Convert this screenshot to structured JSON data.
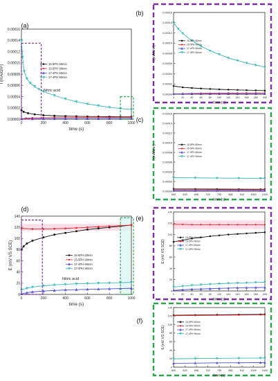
{
  "colors": {
    "black": "#111111",
    "red": "#e3242b",
    "blue": "#4b4bd6",
    "cyan": "#3ab7b7",
    "purple": "#7b2fa0",
    "green": "#2da44e",
    "pink": "#f7c6d8",
    "cyan_fill": "#d7f5f2"
  },
  "chart_data": [
    {
      "panel": "(a)",
      "type": "line",
      "xlabel": "time (s)",
      "ylabel": "I (mA/cm²)",
      "xlim": [
        0,
        1000
      ],
      "ylim": [
        0,
        0.00016
      ],
      "xticks": [
        0,
        200,
        400,
        600,
        800,
        1000
      ],
      "yticks": [
        "0.00000",
        "0.00002",
        "0.00004",
        "0.00006",
        "0.00008",
        "0.00010",
        "0.00012",
        "0.00014",
        "0.00016"
      ],
      "annotation": "Nitric acid",
      "legend": [
        "15-5PH 60min",
        "15-5PH 90min",
        "17-4PH 60min",
        "17-4PH 90min"
      ],
      "series": [
        {
          "name": "15-5PH 60min",
          "color": "black",
          "marker": "square",
          "x": [
            0,
            20,
            60,
            120,
            200,
            300,
            400,
            500,
            600,
            700,
            800,
            900,
            1000
          ],
          "y": [
            1.6e-05,
            1.3e-05,
            1.05e-05,
            8.5e-06,
            7e-06,
            6e-06,
            5.4e-06,
            5e-06,
            4.7e-06,
            4.5e-06,
            4.3e-06,
            4.1e-06,
            4e-06
          ]
        },
        {
          "name": "15-5PH 90min",
          "color": "red",
          "marker": "circle",
          "x": [
            0,
            40,
            100,
            200,
            300,
            400,
            500,
            600,
            700,
            800,
            900,
            1000
          ],
          "y": [
            5e-07,
            1.5e-06,
            2.2e-06,
            2.6e-06,
            2.8e-06,
            2.9e-06,
            3e-06,
            3e-06,
            3e-06,
            3e-06,
            3e-06,
            3e-06
          ]
        },
        {
          "name": "17-4PH 60min",
          "color": "blue",
          "marker": "triangle",
          "x": [
            0,
            100,
            200,
            300,
            400,
            500,
            600,
            700,
            800,
            900,
            1000
          ],
          "y": [
            4e-07,
            6e-07,
            7e-07,
            8e-07,
            8e-07,
            9e-07,
            9e-07,
            9e-07,
            1e-06,
            1e-06,
            1e-06
          ]
        },
        {
          "name": "17-4PH 90min",
          "color": "cyan",
          "marker": "triangle-down",
          "x": [
            0,
            10,
            25,
            50,
            80,
            120,
            160,
            200,
            300,
            400,
            500,
            600,
            700,
            800,
            900,
            1000
          ],
          "y": [
            0.00014,
            0.00011,
            8.5e-05,
            7.2e-05,
            6.4e-05,
            5.8e-05,
            5.3e-05,
            4.9e-05,
            4.2e-05,
            3.6e-05,
            3.1e-05,
            2.7e-05,
            2.4e-05,
            2.1e-05,
            1.9e-05,
            1.7e-05
          ]
        }
      ]
    },
    {
      "panel": "(b)",
      "type": "line",
      "xlabel": "time (s)",
      "ylabel": "I (mA/cm²)",
      "xlim": [
        0,
        200
      ],
      "ylim": [
        0,
        0.00016
      ],
      "xticks": [
        0,
        20,
        40,
        60,
        80,
        100,
        120,
        140,
        160,
        180,
        200
      ],
      "yticks": [
        "0.00000",
        "0.00002",
        "0.00004",
        "0.00006",
        "0.00008",
        "0.00010",
        "0.00012",
        "0.00014",
        "0.00016"
      ],
      "legend": [
        "15-5PH 60min",
        "15-5PH 90min",
        "17-4PH 60min",
        "17-4PH 90min"
      ],
      "series": [
        {
          "name": "15-5PH 60min",
          "color": "black",
          "marker": "square",
          "x": [
            0,
            20,
            40,
            60,
            80,
            100,
            120,
            140,
            160,
            180,
            200
          ],
          "y": [
            1.6e-05,
            1.35e-05,
            1.22e-05,
            1.12e-05,
            1.03e-05,
            9.5e-06,
            8.9e-06,
            8.4e-06,
            7.9e-06,
            7.5e-06,
            7e-06
          ]
        },
        {
          "name": "15-5PH 90min",
          "color": "red",
          "marker": "circle",
          "x": [
            0,
            20,
            40,
            60,
            80,
            100,
            120,
            140,
            160,
            180,
            200
          ],
          "y": [
            5e-07,
            1e-06,
            1.4e-06,
            1.7e-06,
            1.9e-06,
            2.1e-06,
            2.2e-06,
            2.3e-06,
            2.4e-06,
            2.5e-06,
            2.6e-06
          ]
        },
        {
          "name": "17-4PH 60min",
          "color": "blue",
          "marker": "triangle",
          "x": [
            0,
            20,
            40,
            60,
            80,
            100,
            120,
            140,
            160,
            180,
            200
          ],
          "y": [
            4e-07,
            5e-07,
            5e-07,
            6e-07,
            6e-07,
            6e-07,
            7e-07,
            7e-07,
            7e-07,
            7e-07,
            7e-07
          ]
        },
        {
          "name": "17-4PH 90min",
          "color": "cyan",
          "marker": "triangle-down",
          "x": [
            0,
            10,
            20,
            40,
            60,
            80,
            100,
            120,
            140,
            160,
            180,
            200
          ],
          "y": [
            0.00014,
            0.000128,
            0.000119,
            0.000105,
            9.4e-05,
            8.5e-05,
            7.8e-05,
            7.1e-05,
            6.6e-05,
            6.1e-05,
            5.7e-05,
            5.3e-05
          ]
        }
      ]
    },
    {
      "panel": "(c)",
      "type": "line",
      "xlabel": "time (s)",
      "ylabel": "I (mA/cm²)",
      "xlim": [
        600,
        1020
      ],
      "ylim": [
        0,
        0.00016
      ],
      "xticks": [
        600,
        633,
        696,
        743,
        795,
        860,
        912,
        1000,
        1020
      ],
      "yticks": [
        "0.00000",
        "0.00002",
        "0.00004",
        "0.00006",
        "0.00008",
        "0.00010",
        "0.00012",
        "0.00014",
        "0.00016"
      ],
      "legend": [
        "15-5PH 60min",
        "15-5PH 90min",
        "17-4PH 60min",
        "17-4PH 90min"
      ],
      "series": [
        {
          "name": "15-5PH 60min",
          "color": "black",
          "marker": "square",
          "x": [
            600,
            700,
            800,
            900,
            1000,
            1020
          ],
          "y": [
            4.6e-06,
            4.5e-06,
            4.3e-06,
            4.2e-06,
            4e-06,
            4e-06
          ]
        },
        {
          "name": "15-5PH 90min",
          "color": "red",
          "marker": "circle",
          "x": [
            600,
            700,
            800,
            900,
            1000,
            1020
          ],
          "y": [
            3e-06,
            3e-06,
            3e-06,
            3e-06,
            3e-06,
            3e-06
          ]
        },
        {
          "name": "17-4PH 60min",
          "color": "blue",
          "marker": "triangle",
          "x": [
            600,
            700,
            800,
            900,
            1000,
            1020
          ],
          "y": [
            1e-06,
            1e-06,
            1e-06,
            1e-06,
            1e-06,
            1e-06
          ]
        },
        {
          "name": "17-4PH 90min",
          "color": "cyan",
          "marker": "triangle-down",
          "x": [
            600,
            700,
            800,
            900,
            1000,
            1020
          ],
          "y": [
            2.8e-05,
            2.75e-05,
            2.7e-05,
            2.68e-05,
            2.65e-05,
            2.65e-05
          ]
        }
      ]
    },
    {
      "panel": "(d)",
      "type": "line",
      "xlabel": "time (s)",
      "ylabel": "E (mV VS SCE)",
      "xlim": [
        0,
        1000
      ],
      "ylim": [
        0,
        140
      ],
      "xticks": [
        0,
        200,
        400,
        600,
        800,
        1000
      ],
      "yticks": [
        "0",
        "20",
        "40",
        "60",
        "80",
        "100",
        "120",
        "140"
      ],
      "annotation": "Nitric acid",
      "legend": [
        "15-5PH 60min",
        "15-5PH 90min",
        "17-4PH 60min",
        "17-4PH 90min"
      ],
      "series": [
        {
          "name": "15-5PH 60min",
          "color": "black",
          "marker": "square",
          "x": [
            0,
            20,
            50,
            100,
            200,
            300,
            400,
            500,
            600,
            700,
            800,
            900,
            1000
          ],
          "y": [
            80,
            86,
            91,
            96,
            102,
            107,
            110,
            113,
            116,
            118,
            120,
            122,
            124
          ]
        },
        {
          "name": "15-5PH 90min",
          "color": "red",
          "marker": "circle",
          "x": [
            0,
            100,
            200,
            300,
            400,
            500,
            600,
            700,
            800,
            900,
            1000
          ],
          "y": [
            118,
            117,
            117,
            117.5,
            118,
            119,
            120,
            121,
            122,
            123,
            124
          ]
        },
        {
          "name": "17-4PH 60min",
          "color": "blue",
          "marker": "triangle",
          "x": [
            0,
            50,
            100,
            200,
            300,
            400,
            500,
            600,
            700,
            800,
            900,
            1000
          ],
          "y": [
            1,
            3,
            4.5,
            6,
            7,
            8,
            8.5,
            9,
            9.5,
            10,
            10.5,
            11
          ]
        },
        {
          "name": "17-4PH 90min",
          "color": "cyan",
          "marker": "triangle-down",
          "x": [
            0,
            50,
            100,
            200,
            300,
            400,
            500,
            600,
            700,
            800,
            900,
            1000
          ],
          "y": [
            8,
            11,
            13,
            15.5,
            17,
            18,
            19,
            19.5,
            20,
            20.5,
            21,
            21.5
          ]
        }
      ]
    },
    {
      "panel": "(e)",
      "type": "line",
      "xlabel": "time (s)",
      "ylabel": "E (mV VS SCE)",
      "xlim": [
        0,
        200
      ],
      "ylim": [
        0,
        140
      ],
      "xticks": [
        0,
        20,
        40,
        60,
        80,
        100,
        120,
        140,
        160,
        180,
        200
      ],
      "yticks": [
        "0",
        "20",
        "40",
        "60",
        "80",
        "100",
        "120",
        "140"
      ],
      "legend": [
        "15-5PH 60min",
        "15-5PH 90min",
        "17-4PH 60min",
        "17-4PH 90min"
      ],
      "series": [
        {
          "name": "15-5PH 60min",
          "color": "black",
          "marker": "square",
          "x": [
            0,
            20,
            40,
            60,
            80,
            100,
            120,
            140,
            160,
            180,
            200
          ],
          "y": [
            87,
            90,
            93,
            95,
            97,
            98.5,
            100,
            101,
            102,
            103,
            104
          ]
        },
        {
          "name": "15-5PH 90min",
          "color": "red",
          "marker": "circle",
          "x": [
            0,
            20,
            40,
            60,
            80,
            100,
            120,
            140,
            160,
            180,
            200
          ],
          "y": [
            118,
            118,
            117.5,
            117.5,
            117.5,
            117.5,
            117.5,
            117.5,
            117.5,
            117.5,
            117.5
          ]
        },
        {
          "name": "17-4PH 60min",
          "color": "blue",
          "marker": "triangle",
          "x": [
            0,
            20,
            40,
            60,
            80,
            100,
            120,
            140,
            160,
            180,
            200
          ],
          "y": [
            1,
            2,
            3,
            3.5,
            4,
            4.5,
            5,
            5.5,
            5.8,
            6,
            6.2
          ]
        },
        {
          "name": "17-4PH 90min",
          "color": "cyan",
          "marker": "triangle-down",
          "x": [
            0,
            20,
            40,
            60,
            80,
            100,
            120,
            140,
            160,
            180,
            200
          ],
          "y": [
            7,
            8.5,
            10,
            11,
            12,
            12.8,
            13.5,
            14,
            14.5,
            15,
            15.5
          ]
        }
      ]
    },
    {
      "panel": "(f)",
      "type": "line",
      "xlabel": "time (s)",
      "ylabel": "E (mV VS SCE)",
      "xlim": [
        600,
        1020
      ],
      "ylim": [
        0,
        140
      ],
      "xticks": [
        600,
        623,
        696,
        743,
        795,
        860,
        912,
        1000,
        1020
      ],
      "yticks": [
        "0",
        "20",
        "40",
        "60",
        "80",
        "100",
        "120",
        "140"
      ],
      "legend": [
        "15-5PH 60min",
        "15-5PH 90min",
        "17-4PH 60min",
        "17-4PH 90min"
      ],
      "series": [
        {
          "name": "15-5PH 60min",
          "color": "black",
          "marker": "square",
          "x": [
            600,
            700,
            800,
            900,
            1000,
            1020
          ],
          "y": [
            122,
            122.5,
            123,
            123.5,
            124,
            124
          ]
        },
        {
          "name": "15-5PH 90min",
          "color": "red",
          "marker": "circle",
          "x": [
            600,
            700,
            800,
            900,
            1000,
            1020
          ],
          "y": [
            121,
            121.5,
            122,
            122.5,
            123,
            123
          ]
        },
        {
          "name": "17-4PH 60min",
          "color": "blue",
          "marker": "triangle",
          "x": [
            600,
            700,
            800,
            900,
            1000,
            1020
          ],
          "y": [
            9,
            9.5,
            10,
            10.3,
            10.6,
            10.7
          ]
        },
        {
          "name": "17-4PH 90min",
          "color": "cyan",
          "marker": "triangle-down",
          "x": [
            600,
            700,
            800,
            900,
            1000,
            1020
          ],
          "y": [
            19.5,
            20,
            20.5,
            21,
            21.3,
            21.4
          ]
        }
      ]
    }
  ]
}
